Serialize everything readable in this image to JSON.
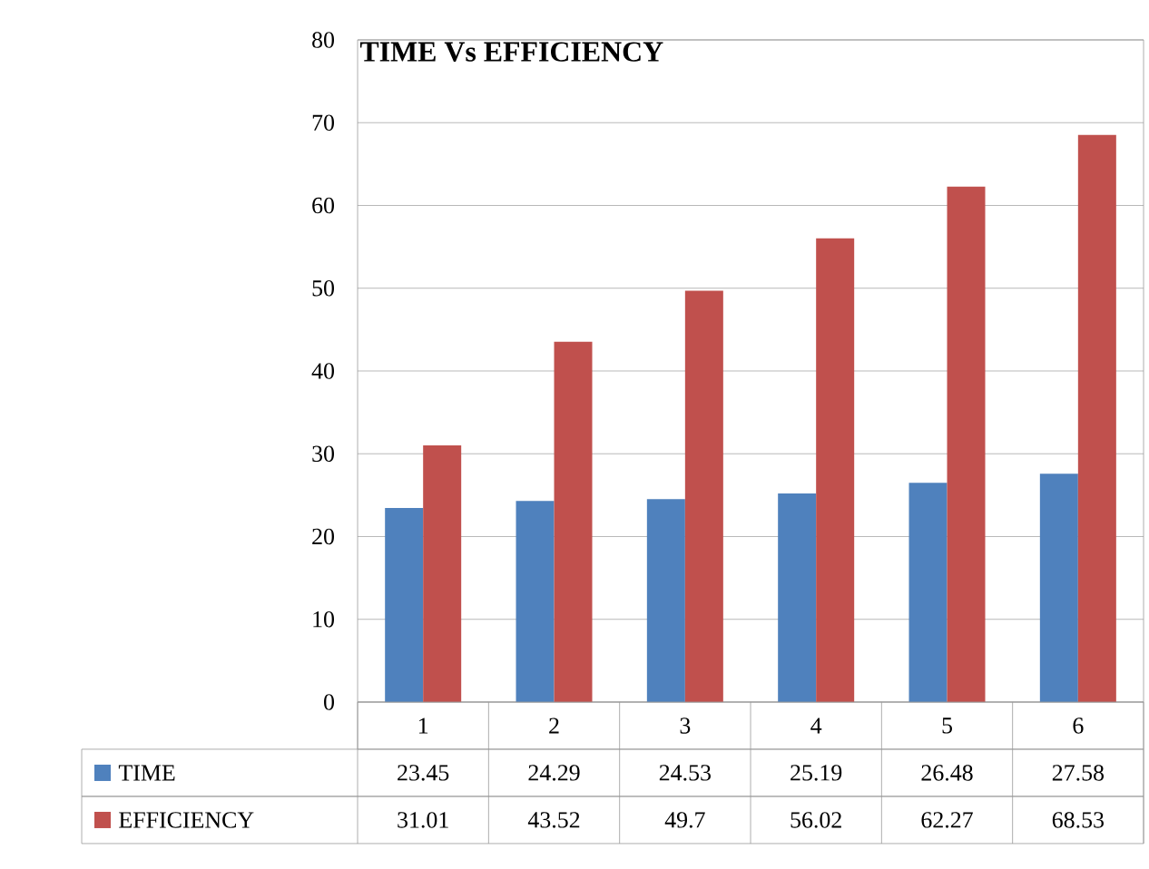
{
  "chart_data": {
    "type": "bar",
    "title": "TIME Vs EFFICIENCY",
    "categories": [
      "1",
      "2",
      "3",
      "4",
      "5",
      "6"
    ],
    "series": [
      {
        "name": "TIME",
        "color": "#4f81bd",
        "values": [
          23.45,
          24.29,
          24.53,
          25.19,
          26.48,
          27.58
        ]
      },
      {
        "name": "EFFICIENCY",
        "color": "#c0504d",
        "values": [
          31.01,
          43.52,
          49.7,
          56.02,
          62.27,
          68.53
        ]
      }
    ],
    "ylim": [
      0,
      80
    ],
    "yticks": [
      0,
      10,
      20,
      30,
      40,
      50,
      60,
      70,
      80
    ],
    "grid": "y",
    "legend": "bottom",
    "data_labels": true
  }
}
